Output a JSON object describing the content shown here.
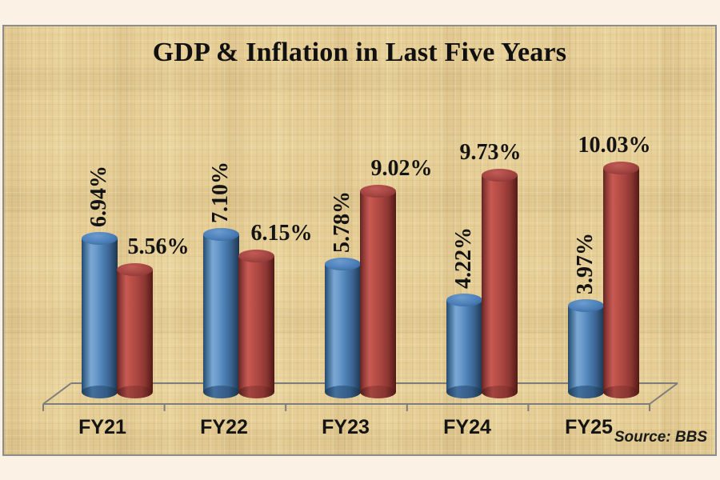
{
  "window": {
    "background_color": "#fbf2e5"
  },
  "chart": {
    "title": "GDP & Inflation in Last Five Years",
    "source_label": "Source: BBS",
    "panel_background": "#e6cf97",
    "panel_border_color": "#8d8d8d",
    "axis_line_color": "#7d7d7d",
    "text_color": "#131313"
  },
  "chart_data": {
    "type": "bar",
    "style": "3d-cylinder",
    "title": "GDP & Inflation in Last Five Years",
    "categories": [
      "FY21",
      "FY22",
      "FY23",
      "FY24",
      "FY25"
    ],
    "series": [
      {
        "name": "GDP",
        "color": "#4F81BD",
        "values": [
          6.94,
          7.1,
          5.78,
          4.22,
          3.97
        ],
        "data_labels": [
          "6.94%",
          "7.10%",
          "5.78%",
          "4.22%",
          "3.97%"
        ],
        "label_orientation": "vertical"
      },
      {
        "name": "Inflation",
        "color": "#C0504D",
        "values": [
          5.56,
          6.15,
          9.02,
          9.73,
          10.03
        ],
        "data_labels": [
          "5.56%",
          "6.15%",
          "9.02%",
          "9.73%",
          "10.03%"
        ],
        "label_orientation": "horizontal"
      }
    ],
    "xlabel": "",
    "ylabel": "",
    "ylim": [
      0,
      11
    ],
    "grid": false,
    "legend": "none",
    "source": "Source: BBS"
  }
}
